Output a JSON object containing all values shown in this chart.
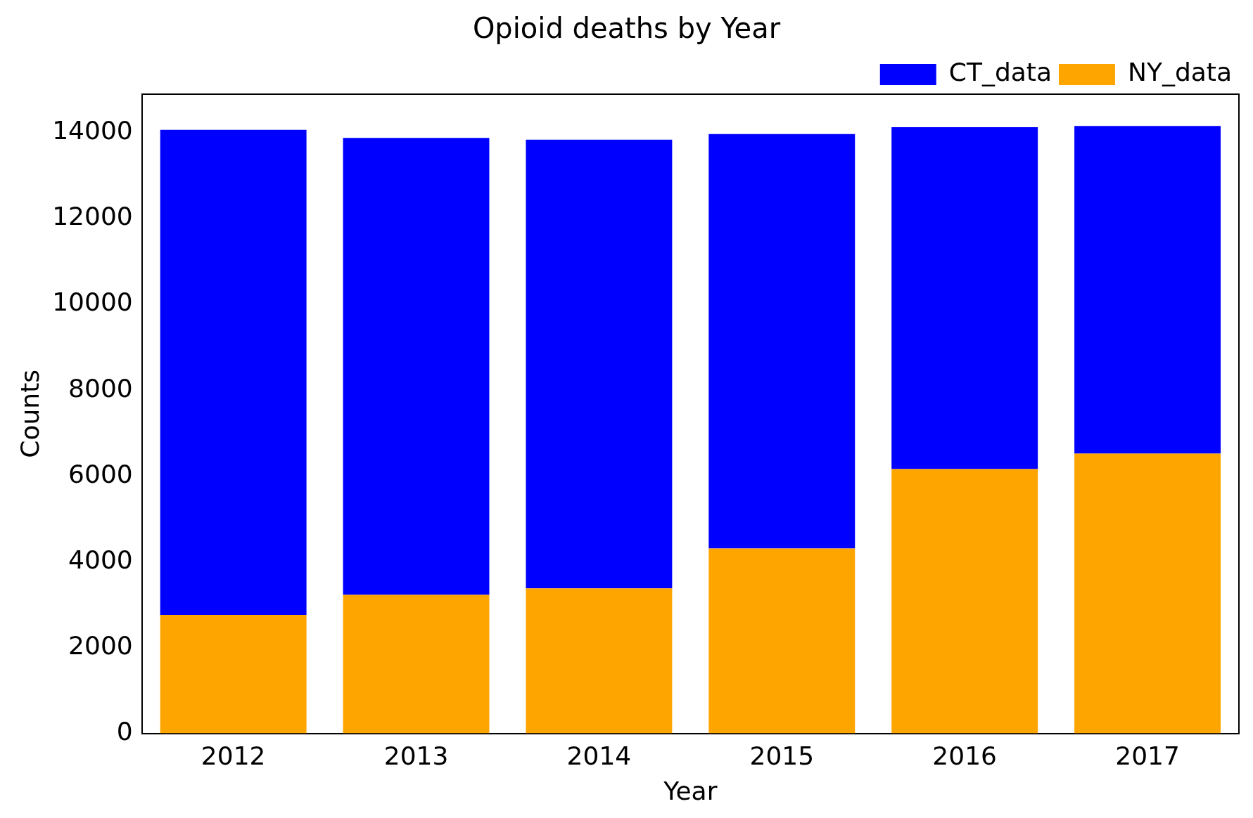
{
  "chart_data": {
    "type": "bar",
    "title": "Opioid deaths by Year",
    "xlabel": "Year",
    "ylabel": "Counts",
    "categories": [
      "2012",
      "2013",
      "2014",
      "2015",
      "2016",
      "2017"
    ],
    "series": [
      {
        "name": "NY_data",
        "color": "#ffa500",
        "values": [
          2760,
          3230,
          3380,
          4310,
          6160,
          6520
        ]
      },
      {
        "name": "CT_data",
        "color": "#0000ff",
        "values": [
          11310,
          10650,
          10460,
          9660,
          7970,
          7640
        ]
      }
    ],
    "stacked": true,
    "ylim": [
      0,
      14900
    ],
    "yticks": [
      0,
      2000,
      4000,
      6000,
      8000,
      10000,
      12000,
      14000
    ],
    "grid": false,
    "legend": "top right"
  }
}
